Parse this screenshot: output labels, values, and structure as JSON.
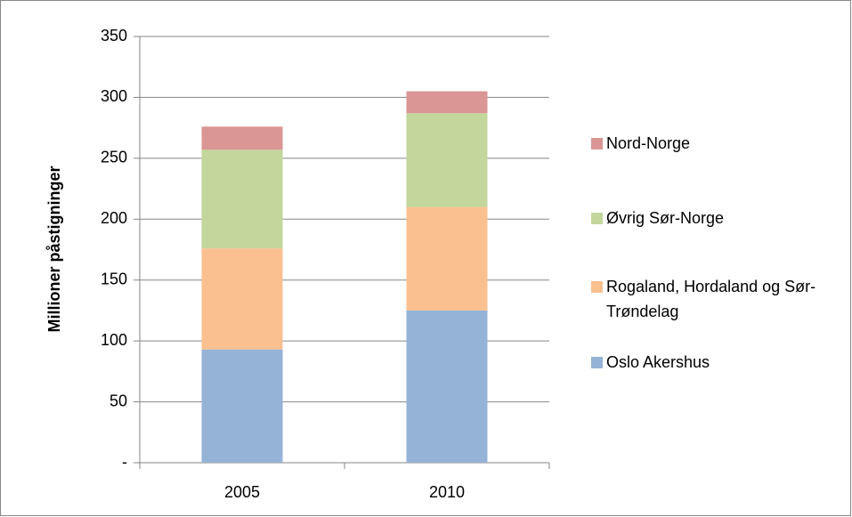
{
  "chart_data": {
    "type": "stacked_bar",
    "y_label": "Millioner påstigninger",
    "categories": [
      "2005",
      "2010"
    ],
    "series": [
      {
        "name": "Oslo Akershus",
        "color": "#95b3d7",
        "values": [
          93,
          125
        ]
      },
      {
        "name": "Rogaland, Hordaland og Sør-Trøndelag",
        "color": "#fac090",
        "values": [
          83,
          85
        ]
      },
      {
        "name": "Øvrig Sør-Norge",
        "color": "#c3d69b",
        "values": [
          81,
          77
        ]
      },
      {
        "name": "Nord-Norge",
        "color": "#d99694",
        "values": [
          19,
          18
        ]
      }
    ],
    "ylim": [
      0,
      350
    ],
    "yticks": [
      {
        "value": 0,
        "label": "-"
      },
      50,
      100,
      150,
      200,
      250,
      300,
      350
    ],
    "grid": true,
    "legend": "right"
  }
}
